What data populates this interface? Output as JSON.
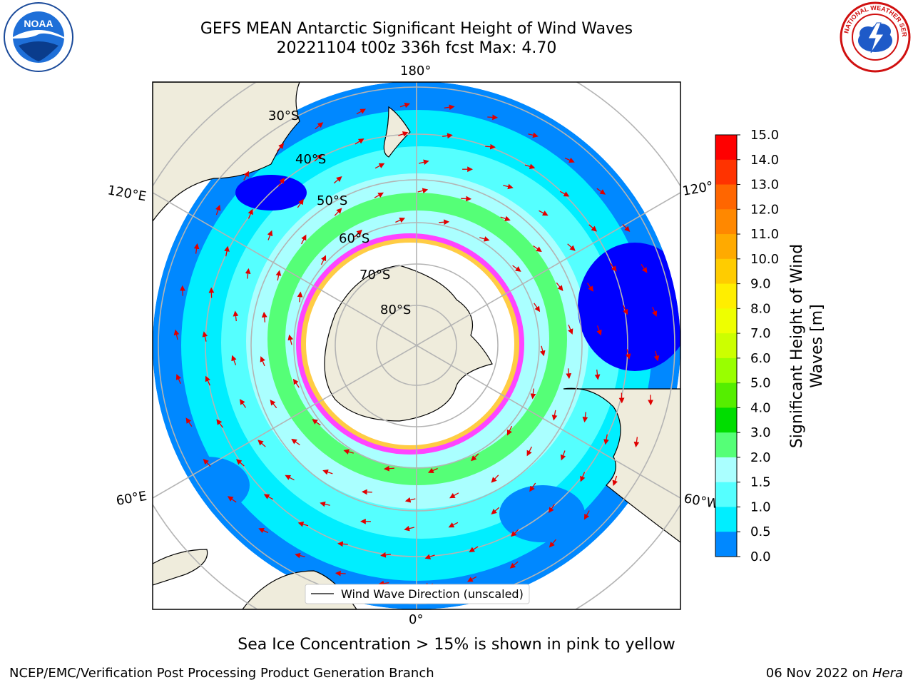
{
  "title": {
    "line1": "GEFS MEAN Antarctic Significant Height of Wind Waves",
    "line2": "20221104 t00z 336h fcst   Max: 4.70"
  },
  "caption": "Sea Ice Concentration > 15% is shown in pink to yellow",
  "footer": {
    "left": "NCEP/EMC/Verification Post Processing Product Generation Branch",
    "date": "06 Nov 2022 on",
    "machine": "Hera"
  },
  "legend": {
    "label": "Wind Wave Direction (unscaled)"
  },
  "map": {
    "projection": "south-polar-stereographic",
    "lat_labels": [
      "30°S",
      "40°S",
      "50°S",
      "60°S",
      "70°S",
      "80°S"
    ],
    "lon_labels": {
      "top": "180°",
      "bottom": "0°",
      "left_upper": "120°E",
      "left_lower": "60°E",
      "right_upper": "120°",
      "right_lower": "60°W"
    },
    "colors": {
      "land": "#efecdc",
      "ice": "#ffffff",
      "arrow": "#e00000",
      "grid": "#b4b4b4"
    }
  },
  "colorbar": {
    "title_line1": "Significant Height of Wind",
    "title_line2": "Waves [m]",
    "ticks": [
      "15.0",
      "14.0",
      "13.0",
      "12.0",
      "11.0",
      "10.0",
      "9.0",
      "8.0",
      "7.0",
      "6.0",
      "5.0",
      "4.0",
      "3.0",
      "2.0",
      "1.5",
      "1.0",
      "0.5",
      "0.0"
    ],
    "colors": [
      "#ff0000",
      "#ff3300",
      "#ff6600",
      "#ff8800",
      "#ffaa00",
      "#ffcc00",
      "#ffee00",
      "#eeff00",
      "#ccff00",
      "#99ff00",
      "#55ee00",
      "#00dd00",
      "#55ff77",
      "#aaffff",
      "#55ffff",
      "#00eeff",
      "#0088ff",
      "#0000ff"
    ]
  },
  "logos": {
    "noaa_text": "NOAA",
    "nws_text": "NATIONAL WEATHER SERVICE"
  }
}
